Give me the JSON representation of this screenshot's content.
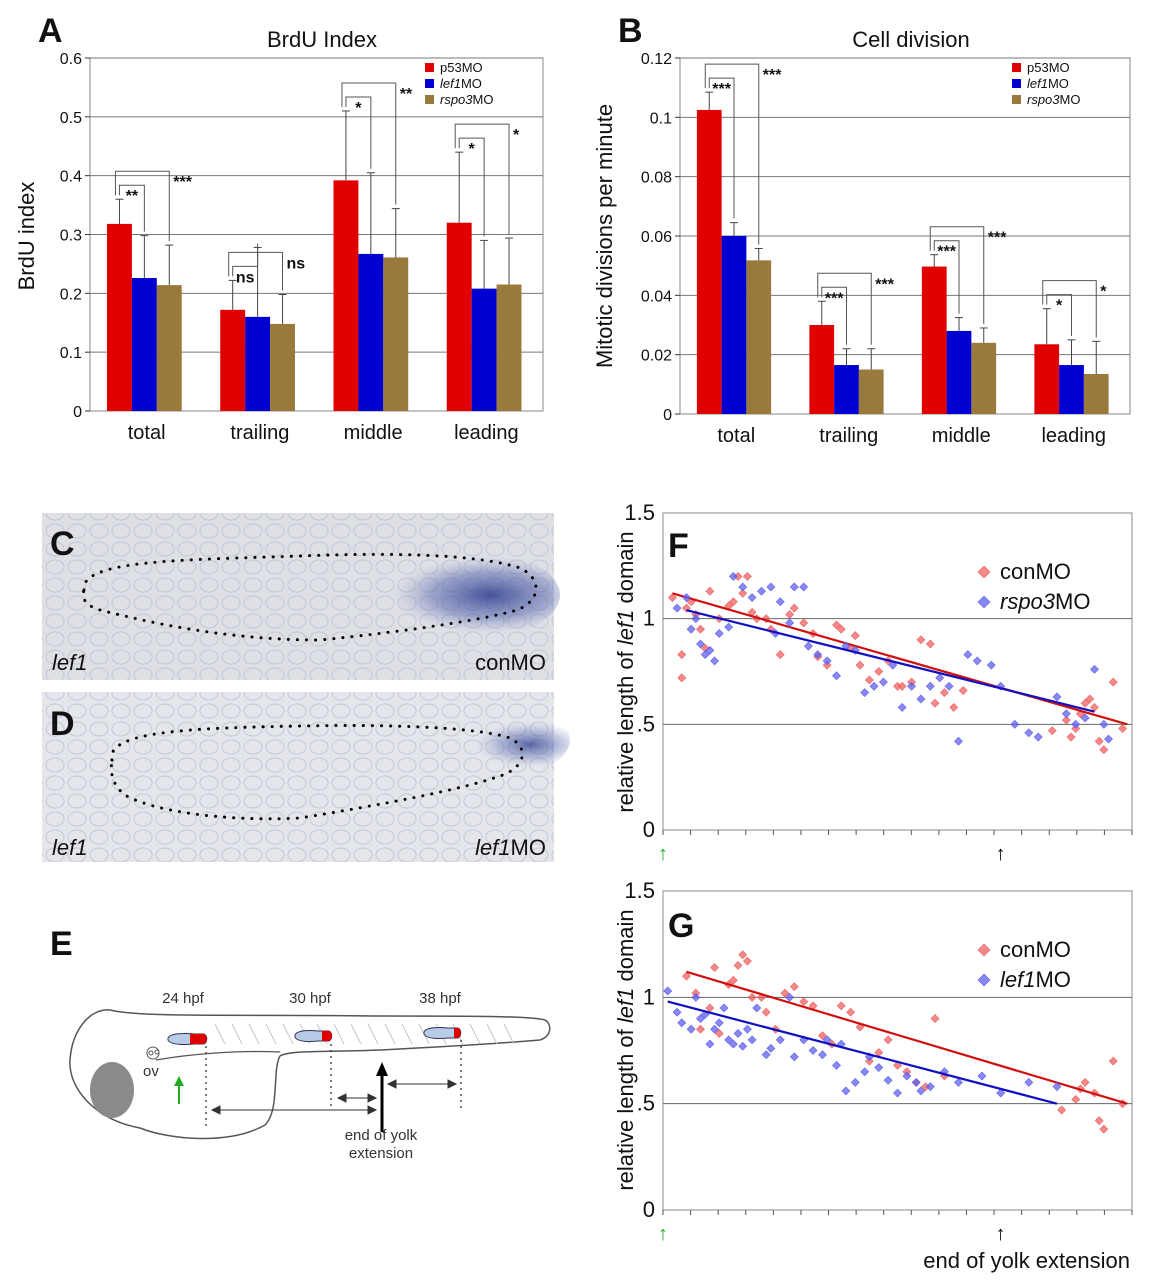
{
  "colors": {
    "p53MO": "#e00000",
    "lef1MO": "#0000d0",
    "rspo3MO": "#9a7a3c",
    "conMO_marker": "#ee6060",
    "rspo3MO_marker": "#6060ee",
    "lef1MO_marker": "#6060ee",
    "conMO_line": "#d01010",
    "treated_line": "#1010c0",
    "green_arrow": "#22aa22",
    "embryo_red": "#e00000",
    "embryo_blue": "#b8cce8"
  },
  "panels": {
    "A": "A",
    "B": "B",
    "C": "C",
    "D": "D",
    "E": "E",
    "F": "F",
    "G": "G"
  },
  "chart_data": [
    {
      "id": "A",
      "type": "bar",
      "title": "BrdU Index",
      "xlabel": "",
      "ylabel": "BrdU index",
      "ylim": [
        0,
        0.6
      ],
      "yticks": [
        "0",
        "0.1",
        "0.2",
        "0.3",
        "0.4",
        "0.5",
        "0.6"
      ],
      "grid": true,
      "legend_position": "top-right",
      "categories": [
        "total",
        "trailing",
        "middle",
        "leading"
      ],
      "series": [
        {
          "name": "p53MO",
          "values": [
            0.318,
            0.172,
            0.392,
            0.32
          ],
          "errors": [
            0.042,
            0.05,
            0.118,
            0.12
          ]
        },
        {
          "name": "lef1MO",
          "values": [
            0.226,
            0.16,
            0.267,
            0.208
          ],
          "errors": [
            0.072,
            0.118,
            0.138,
            0.082
          ]
        },
        {
          "name": "rspo3MO",
          "values": [
            0.214,
            0.148,
            0.261,
            0.215
          ],
          "errors": [
            0.068,
            0.05,
            0.083,
            0.079
          ]
        }
      ],
      "significance": [
        {
          "category": "total",
          "inner": "**",
          "outer": "***"
        },
        {
          "category": "trailing",
          "inner": "ns",
          "outer": "ns"
        },
        {
          "category": "middle",
          "inner": "*",
          "outer": "**"
        },
        {
          "category": "leading",
          "inner": "*",
          "outer": "*"
        }
      ]
    },
    {
      "id": "B",
      "type": "bar",
      "title": "Cell division",
      "xlabel": "",
      "ylabel": "Mitotic divisions per minute",
      "ylim": [
        0,
        0.12
      ],
      "yticks": [
        "0",
        "0.02",
        "0.04",
        "0.06",
        "0.08",
        "0.1",
        "0.12"
      ],
      "grid": true,
      "legend_position": "top-right",
      "categories": [
        "total",
        "trailing",
        "middle",
        "leading"
      ],
      "series": [
        {
          "name": "p53MO",
          "values": [
            0.1025,
            0.03,
            0.0497,
            0.0235
          ],
          "errors": [
            0.006,
            0.008,
            0.004,
            0.012
          ]
        },
        {
          "name": "lef1MO",
          "values": [
            0.06,
            0.0165,
            0.028,
            0.0165
          ],
          "errors": [
            0.0045,
            0.0055,
            0.0045,
            0.0085
          ]
        },
        {
          "name": "rspo3MO",
          "values": [
            0.0518,
            0.015,
            0.024,
            0.0135
          ],
          "errors": [
            0.004,
            0.007,
            0.005,
            0.011
          ]
        }
      ],
      "significance": [
        {
          "category": "total",
          "inner": "***",
          "outer": "***"
        },
        {
          "category": "trailing",
          "inner": "***",
          "outer": "***"
        },
        {
          "category": "middle",
          "inner": "***",
          "outer": "***"
        },
        {
          "category": "leading",
          "inner": "*",
          "outer": "*"
        }
      ]
    },
    {
      "id": "F",
      "type": "scatter",
      "xlabel": "",
      "ylabel_parts": [
        "relative length of ",
        "lef1",
        " domain"
      ],
      "ylim": [
        0,
        1.5
      ],
      "xlim": [
        0,
        1
      ],
      "yticks": [
        "0",
        ".5",
        "1",
        "1.5"
      ],
      "grid": true,
      "legend_position": "top-right",
      "series": [
        {
          "name": "conMO",
          "name_italic": "",
          "name_rest": "conMO",
          "points": [
            [
              0.02,
              1.1
            ],
            [
              0.05,
              1.05
            ],
            [
              0.06,
              1.08
            ],
            [
              0.07,
              1.02
            ],
            [
              0.04,
              0.83
            ],
            [
              0.04,
              0.72
            ],
            [
              0.08,
              0.95
            ],
            [
              0.09,
              0.86
            ],
            [
              0.1,
              1.13
            ],
            [
              0.12,
              1.0
            ],
            [
              0.14,
              1.06
            ],
            [
              0.15,
              1.08
            ],
            [
              0.16,
              1.2
            ],
            [
              0.17,
              1.12
            ],
            [
              0.18,
              1.2
            ],
            [
              0.19,
              1.03
            ],
            [
              0.2,
              1.0
            ],
            [
              0.22,
              1.0
            ],
            [
              0.23,
              0.95
            ],
            [
              0.25,
              0.83
            ],
            [
              0.27,
              1.02
            ],
            [
              0.28,
              1.05
            ],
            [
              0.3,
              0.98
            ],
            [
              0.32,
              0.93
            ],
            [
              0.33,
              0.82
            ],
            [
              0.35,
              0.78
            ],
            [
              0.37,
              0.97
            ],
            [
              0.38,
              0.95
            ],
            [
              0.4,
              0.86
            ],
            [
              0.41,
              0.92
            ],
            [
              0.42,
              0.78
            ],
            [
              0.44,
              0.71
            ],
            [
              0.46,
              0.75
            ],
            [
              0.48,
              0.8
            ],
            [
              0.5,
              0.68
            ],
            [
              0.51,
              0.68
            ],
            [
              0.53,
              0.7
            ],
            [
              0.55,
              0.9
            ],
            [
              0.57,
              0.88
            ],
            [
              0.58,
              0.6
            ],
            [
              0.6,
              0.65
            ],
            [
              0.62,
              0.58
            ],
            [
              0.64,
              0.66
            ],
            [
              0.83,
              0.47
            ],
            [
              0.86,
              0.52
            ],
            [
              0.88,
              0.48
            ],
            [
              0.89,
              0.55
            ],
            [
              0.9,
              0.6
            ],
            [
              0.91,
              0.62
            ],
            [
              0.92,
              0.58
            ],
            [
              0.93,
              0.42
            ],
            [
              0.94,
              0.38
            ],
            [
              0.96,
              0.7
            ],
            [
              0.98,
              0.48
            ],
            [
              0.87,
              0.44
            ]
          ],
          "fit": [
            [
              0.02,
              1.12
            ],
            [
              0.99,
              0.5
            ]
          ]
        },
        {
          "name": "rspo3MO",
          "name_italic": "rspo3",
          "name_rest": "MO",
          "points": [
            [
              0.03,
              1.05
            ],
            [
              0.05,
              1.1
            ],
            [
              0.06,
              0.95
            ],
            [
              0.07,
              1.0
            ],
            [
              0.08,
              0.88
            ],
            [
              0.09,
              0.83
            ],
            [
              0.1,
              0.85
            ],
            [
              0.11,
              0.8
            ],
            [
              0.12,
              0.93
            ],
            [
              0.14,
              0.96
            ],
            [
              0.15,
              1.2
            ],
            [
              0.17,
              1.15
            ],
            [
              0.19,
              1.1
            ],
            [
              0.21,
              1.13
            ],
            [
              0.23,
              1.15
            ],
            [
              0.24,
              0.93
            ],
            [
              0.25,
              1.08
            ],
            [
              0.27,
              0.98
            ],
            [
              0.28,
              1.15
            ],
            [
              0.3,
              1.15
            ],
            [
              0.31,
              0.87
            ],
            [
              0.33,
              0.83
            ],
            [
              0.35,
              0.8
            ],
            [
              0.37,
              0.73
            ],
            [
              0.39,
              0.87
            ],
            [
              0.41,
              0.85
            ],
            [
              0.43,
              0.65
            ],
            [
              0.45,
              0.68
            ],
            [
              0.47,
              0.7
            ],
            [
              0.49,
              0.78
            ],
            [
              0.51,
              0.58
            ],
            [
              0.53,
              0.68
            ],
            [
              0.55,
              0.62
            ],
            [
              0.57,
              0.68
            ],
            [
              0.59,
              0.72
            ],
            [
              0.61,
              0.68
            ],
            [
              0.63,
              0.42
            ],
            [
              0.65,
              0.83
            ],
            [
              0.67,
              0.8
            ],
            [
              0.7,
              0.78
            ],
            [
              0.72,
              0.68
            ],
            [
              0.75,
              0.5
            ],
            [
              0.78,
              0.46
            ],
            [
              0.8,
              0.44
            ],
            [
              0.84,
              0.63
            ],
            [
              0.86,
              0.55
            ],
            [
              0.88,
              0.5
            ],
            [
              0.9,
              0.53
            ],
            [
              0.92,
              0.76
            ],
            [
              0.94,
              0.5
            ],
            [
              0.95,
              0.43
            ]
          ],
          "fit": [
            [
              0.05,
              1.04
            ],
            [
              0.92,
              0.56
            ]
          ]
        }
      ],
      "markers": {
        "green_arrow": "↑",
        "black_arrow": "↑",
        "green_x": 0.0,
        "black_x": 0.72
      }
    },
    {
      "id": "G",
      "type": "scatter",
      "xlabel": "end of yolk extension",
      "ylabel_parts": [
        "relative length of ",
        "lef1",
        " domain"
      ],
      "ylim": [
        0,
        1.5
      ],
      "xlim": [
        0,
        1
      ],
      "yticks": [
        "0",
        ".5",
        "1",
        "1.5"
      ],
      "grid": true,
      "legend_position": "top-right",
      "series": [
        {
          "name": "conMO",
          "name_italic": "",
          "name_rest": "conMO",
          "points": [
            [
              0.05,
              1.1
            ],
            [
              0.07,
              1.02
            ],
            [
              0.08,
              0.85
            ],
            [
              0.1,
              0.95
            ],
            [
              0.11,
              1.14
            ],
            [
              0.12,
              0.83
            ],
            [
              0.14,
              1.06
            ],
            [
              0.15,
              1.08
            ],
            [
              0.16,
              1.15
            ],
            [
              0.17,
              1.2
            ],
            [
              0.18,
              1.17
            ],
            [
              0.19,
              1.0
            ],
            [
              0.21,
              1.0
            ],
            [
              0.22,
              0.93
            ],
            [
              0.24,
              0.85
            ],
            [
              0.26,
              1.02
            ],
            [
              0.28,
              1.05
            ],
            [
              0.3,
              0.98
            ],
            [
              0.32,
              0.96
            ],
            [
              0.34,
              0.82
            ],
            [
              0.36,
              0.78
            ],
            [
              0.38,
              0.96
            ],
            [
              0.4,
              0.93
            ],
            [
              0.42,
              0.86
            ],
            [
              0.44,
              0.7
            ],
            [
              0.46,
              0.74
            ],
            [
              0.48,
              0.8
            ],
            [
              0.5,
              0.68
            ],
            [
              0.52,
              0.65
            ],
            [
              0.54,
              0.6
            ],
            [
              0.56,
              0.58
            ],
            [
              0.58,
              0.9
            ],
            [
              0.6,
              0.63
            ],
            [
              0.85,
              0.47
            ],
            [
              0.88,
              0.52
            ],
            [
              0.9,
              0.6
            ],
            [
              0.92,
              0.55
            ],
            [
              0.93,
              0.42
            ],
            [
              0.94,
              0.38
            ],
            [
              0.96,
              0.7
            ],
            [
              0.98,
              0.5
            ],
            [
              0.89,
              0.57
            ]
          ],
          "fit": [
            [
              0.05,
              1.12
            ],
            [
              0.99,
              0.5
            ]
          ]
        },
        {
          "name": "lef1MO",
          "name_italic": "lef1",
          "name_rest": "MO",
          "points": [
            [
              0.01,
              1.03
            ],
            [
              0.03,
              0.93
            ],
            [
              0.04,
              0.88
            ],
            [
              0.06,
              0.85
            ],
            [
              0.07,
              1.0
            ],
            [
              0.08,
              0.9
            ],
            [
              0.09,
              0.92
            ],
            [
              0.1,
              0.78
            ],
            [
              0.11,
              0.85
            ],
            [
              0.12,
              0.88
            ],
            [
              0.13,
              0.95
            ],
            [
              0.14,
              0.8
            ],
            [
              0.15,
              0.78
            ],
            [
              0.16,
              0.83
            ],
            [
              0.17,
              0.77
            ],
            [
              0.18,
              0.85
            ],
            [
              0.19,
              0.8
            ],
            [
              0.2,
              0.95
            ],
            [
              0.22,
              0.73
            ],
            [
              0.23,
              0.76
            ],
            [
              0.25,
              0.8
            ],
            [
              0.27,
              1.0
            ],
            [
              0.28,
              0.72
            ],
            [
              0.3,
              0.8
            ],
            [
              0.32,
              0.75
            ],
            [
              0.34,
              0.73
            ],
            [
              0.35,
              0.8
            ],
            [
              0.37,
              0.68
            ],
            [
              0.38,
              0.78
            ],
            [
              0.39,
              0.56
            ],
            [
              0.41,
              0.6
            ],
            [
              0.43,
              0.65
            ],
            [
              0.44,
              0.72
            ],
            [
              0.46,
              0.67
            ],
            [
              0.48,
              0.61
            ],
            [
              0.5,
              0.55
            ],
            [
              0.52,
              0.63
            ],
            [
              0.54,
              0.6
            ],
            [
              0.55,
              0.56
            ],
            [
              0.57,
              0.58
            ],
            [
              0.6,
              0.65
            ],
            [
              0.63,
              0.6
            ],
            [
              0.68,
              0.63
            ],
            [
              0.72,
              0.55
            ],
            [
              0.78,
              0.6
            ],
            [
              0.84,
              0.58
            ]
          ],
          "fit": [
            [
              0.01,
              0.98
            ],
            [
              0.84,
              0.5
            ]
          ]
        }
      ],
      "markers": {
        "green_arrow": "↑",
        "black_arrow": "↑",
        "green_x": 0.0,
        "black_x": 0.72
      }
    }
  ],
  "panel_C": {
    "gene_italic": "lef1",
    "treatment": "conMO"
  },
  "panel_D": {
    "gene_italic": "lef1",
    "treatment_italic": "lef1",
    "treatment_rest": "MO"
  },
  "panel_E": {
    "stage_1": "24 hpf",
    "stage_2": "30 hpf",
    "stage_3": "38 hpf",
    "ov_label": "ov",
    "yolk_label_line1": "end of yolk",
    "yolk_label_line2": "extension"
  }
}
